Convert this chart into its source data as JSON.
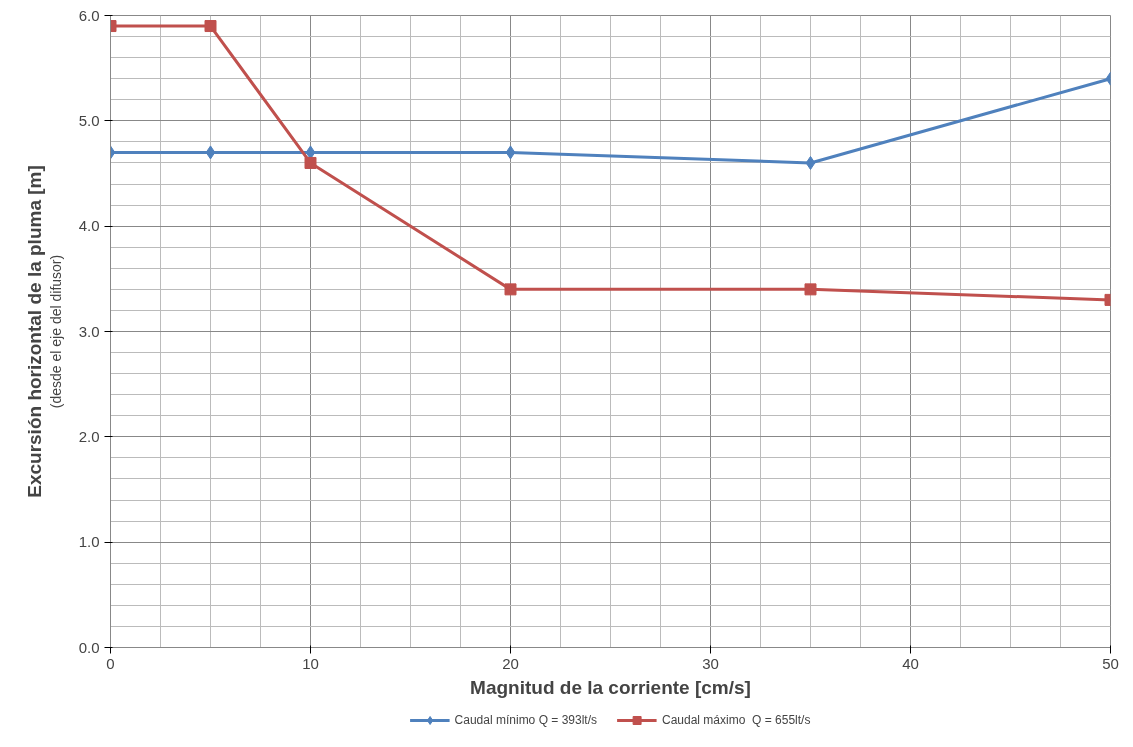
{
  "chart_data": {
    "type": "line",
    "xlabel": "Magnitud de la corriente [cm/s]",
    "ylabel": "Excursión horizontal de la pluma [m]",
    "annotations": [
      "(desde el eje del difusor)"
    ],
    "x": [
      0,
      5,
      10,
      20,
      35,
      50
    ],
    "series": [
      {
        "name": "Caudal mínimo Q = 393lt/s",
        "color": "#4f81bd",
        "marker": "diamond",
        "values": [
          4.7,
          4.7,
          4.7,
          4.7,
          4.6,
          5.4
        ]
      },
      {
        "name": "Caudal máximo  Q = 655lt/s",
        "color": "#c0504d",
        "marker": "square",
        "values": [
          5.9,
          5.9,
          4.6,
          3.4,
          3.4,
          3.3
        ]
      }
    ],
    "xlim": [
      0,
      50
    ],
    "xticks": [
      0,
      10,
      20,
      30,
      40,
      50
    ],
    "ylim": [
      0,
      6
    ],
    "yticks": [
      {
        "value": 0,
        "label": "0.0"
      },
      {
        "value": 1,
        "label": "1.0"
      },
      {
        "value": 2,
        "label": "2.0"
      },
      {
        "value": 3,
        "label": "3.0"
      },
      {
        "value": 4,
        "label": "4.0"
      },
      {
        "value": 5,
        "label": "5.0"
      },
      {
        "value": 6,
        "label": "6.0"
      }
    ],
    "grid": true,
    "legend": "bottom",
    "line_style": "solid"
  }
}
